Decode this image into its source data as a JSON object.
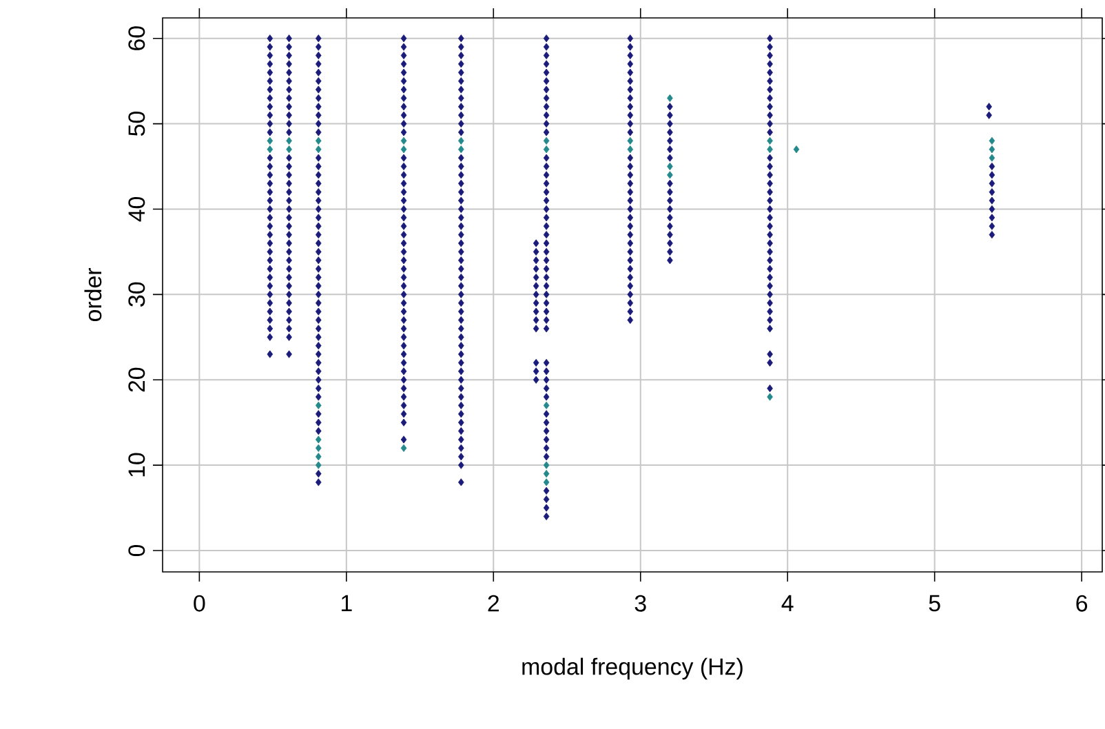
{
  "chart_data": {
    "type": "scatter",
    "xlabel": "modal frequency (Hz)",
    "ylabel": "order",
    "xlim": [
      -0.25,
      6.14
    ],
    "ylim": [
      -2.5,
      62.4
    ],
    "xticks": [
      0,
      1,
      2,
      3,
      4,
      5,
      6
    ],
    "yticks": [
      0,
      10,
      20,
      30,
      40,
      50,
      60
    ],
    "grid": true,
    "marker": "diamond",
    "series": [
      {
        "color": "#1b1b7a",
        "x": [
          0.48,
          0.48,
          0.48,
          0.48,
          0.48,
          0.48,
          0.48,
          0.48,
          0.48,
          0.48,
          0.48,
          0.48,
          0.48,
          0.48,
          0.48,
          0.48,
          0.48,
          0.48,
          0.48,
          0.48,
          0.48,
          0.48,
          0.48,
          0.48,
          0.48,
          0.48,
          0.48,
          0.48,
          0.48,
          0.48,
          0.48,
          0.48,
          0.48,
          0.48,
          0.48
        ],
        "values": [
          23,
          25,
          26,
          27,
          28,
          29,
          30,
          31,
          32,
          33,
          34,
          35,
          36,
          37,
          38,
          39,
          40,
          41,
          42,
          43,
          44,
          45,
          46,
          49,
          50,
          51,
          52,
          53,
          54,
          55,
          56,
          57,
          58,
          59,
          60
        ]
      },
      {
        "color": "#1b1b7a",
        "x": [
          0.61,
          0.61,
          0.61,
          0.61,
          0.61,
          0.61,
          0.61,
          0.61,
          0.61,
          0.61,
          0.61,
          0.61,
          0.61,
          0.61,
          0.61,
          0.61,
          0.61,
          0.61,
          0.61,
          0.61,
          0.61,
          0.61,
          0.61,
          0.61,
          0.61,
          0.61,
          0.61,
          0.61,
          0.61,
          0.61,
          0.61,
          0.61,
          0.61,
          0.61,
          0.61
        ],
        "values": [
          23,
          25,
          26,
          27,
          28,
          29,
          30,
          31,
          32,
          33,
          34,
          35,
          36,
          37,
          38,
          39,
          40,
          41,
          42,
          43,
          44,
          45,
          46,
          49,
          50,
          51,
          52,
          53,
          54,
          55,
          56,
          57,
          58,
          59,
          60
        ]
      },
      {
        "color": "#1b1b7a",
        "x": [
          0.81,
          0.81,
          0.81,
          0.81,
          0.81,
          0.81,
          0.81,
          0.81,
          0.81,
          0.81,
          0.81,
          0.81,
          0.81,
          0.81,
          0.81,
          0.81,
          0.81,
          0.81,
          0.81,
          0.81,
          0.81,
          0.81,
          0.81,
          0.81,
          0.81,
          0.81,
          0.81,
          0.81,
          0.81,
          0.81,
          0.81,
          0.81,
          0.81,
          0.81,
          0.81,
          0.81,
          0.81,
          0.81,
          0.81,
          0.81,
          0.81,
          0.81,
          0.81,
          0.81,
          0.81,
          0.81
        ],
        "values": [
          8,
          9,
          14,
          15,
          16,
          18,
          19,
          20,
          21,
          22,
          23,
          24,
          25,
          26,
          27,
          28,
          29,
          30,
          31,
          32,
          33,
          34,
          35,
          36,
          37,
          38,
          39,
          40,
          41,
          42,
          43,
          44,
          45,
          46,
          49,
          50,
          51,
          52,
          53,
          54,
          55,
          56,
          57,
          58,
          59,
          60
        ]
      },
      {
        "color": "#1b1b7a",
        "x": [
          1.39,
          1.39,
          1.39,
          1.39,
          1.39,
          1.39,
          1.39,
          1.39,
          1.39,
          1.39,
          1.39,
          1.39,
          1.39,
          1.39,
          1.39,
          1.39,
          1.39,
          1.39,
          1.39,
          1.39,
          1.39,
          1.39,
          1.39,
          1.39,
          1.39,
          1.39,
          1.39,
          1.39,
          1.39,
          1.39,
          1.39,
          1.39,
          1.39,
          1.39,
          1.39,
          1.39,
          1.39,
          1.39,
          1.39,
          1.39,
          1.39,
          1.39,
          1.39,
          1.39,
          1.39
        ],
        "values": [
          13,
          15,
          16,
          17,
          18,
          19,
          20,
          21,
          22,
          23,
          24,
          25,
          26,
          27,
          28,
          29,
          30,
          31,
          32,
          33,
          34,
          35,
          36,
          37,
          38,
          39,
          40,
          41,
          42,
          43,
          44,
          45,
          46,
          49,
          50,
          51,
          52,
          53,
          54,
          55,
          56,
          57,
          58,
          59,
          60
        ]
      },
      {
        "color": "#1b1b7a",
        "x": [
          1.78,
          1.78,
          1.78,
          1.78,
          1.78,
          1.78,
          1.78,
          1.78,
          1.78,
          1.78,
          1.78,
          1.78,
          1.78,
          1.78,
          1.78,
          1.78,
          1.78,
          1.78,
          1.78,
          1.78,
          1.78,
          1.78,
          1.78,
          1.78,
          1.78,
          1.78,
          1.78,
          1.78,
          1.78,
          1.78,
          1.78,
          1.78,
          1.78,
          1.78,
          1.78,
          1.78,
          1.78,
          1.78,
          1.78,
          1.78,
          1.78,
          1.78,
          1.78,
          1.78,
          1.78,
          1.78,
          1.78,
          1.78,
          1.78,
          1.78
        ],
        "values": [
          8,
          10,
          11,
          12,
          13,
          14,
          15,
          16,
          17,
          18,
          19,
          20,
          21,
          22,
          23,
          24,
          25,
          26,
          27,
          28,
          29,
          30,
          31,
          32,
          33,
          34,
          35,
          36,
          37,
          38,
          39,
          40,
          41,
          42,
          43,
          44,
          45,
          46,
          49,
          50,
          51,
          52,
          53,
          54,
          55,
          56,
          57,
          58,
          59,
          60
        ]
      },
      {
        "color": "#1b1b7a",
        "x": [
          2.29,
          2.29,
          2.29,
          2.29,
          2.29,
          2.29,
          2.29,
          2.29,
          2.29,
          2.29,
          2.29,
          2.29,
          2.29,
          2.29
        ],
        "values": [
          20,
          21,
          22,
          26,
          27,
          28,
          29,
          30,
          31,
          32,
          33,
          34,
          35,
          36
        ]
      },
      {
        "color": "#1b1b7a",
        "x": [
          2.36,
          2.36,
          2.36,
          2.36,
          2.36,
          2.36,
          2.36,
          2.36,
          2.36,
          2.36,
          2.36,
          2.36,
          2.36,
          2.36,
          2.36,
          2.36,
          2.36,
          2.36,
          2.36,
          2.36,
          2.36,
          2.36,
          2.36,
          2.36,
          2.36,
          2.36,
          2.36,
          2.36,
          2.36,
          2.36,
          2.36,
          2.36,
          2.36,
          2.36,
          2.36,
          2.36,
          2.36,
          2.36,
          2.36,
          2.36,
          2.36,
          2.36,
          2.36,
          2.36,
          2.36,
          2.36,
          2.36,
          2.36
        ],
        "values": [
          4,
          5,
          6,
          7,
          11,
          12,
          13,
          14,
          15,
          16,
          18,
          19,
          20,
          21,
          22,
          26,
          27,
          28,
          29,
          30,
          31,
          32,
          33,
          34,
          35,
          36,
          37,
          38,
          39,
          40,
          41,
          42,
          43,
          44,
          45,
          46,
          49,
          50,
          51,
          52,
          53,
          54,
          55,
          56,
          57,
          58,
          59,
          60
        ]
      },
      {
        "color": "#1b1b7a",
        "x": [
          2.93,
          2.93,
          2.93,
          2.93,
          2.93,
          2.93,
          2.93,
          2.93,
          2.93,
          2.93,
          2.93,
          2.93,
          2.93,
          2.93,
          2.93,
          2.93,
          2.93,
          2.93,
          2.93,
          2.93,
          2.93,
          2.93,
          2.93,
          2.93,
          2.93,
          2.93,
          2.93,
          2.93,
          2.93,
          2.93,
          2.93,
          2.93
        ],
        "values": [
          27,
          28,
          29,
          30,
          31,
          32,
          33,
          34,
          35,
          36,
          37,
          38,
          39,
          40,
          41,
          42,
          43,
          44,
          45,
          46,
          49,
          50,
          51,
          52,
          53,
          54,
          55,
          56,
          57,
          58,
          59,
          60
        ]
      },
      {
        "color": "#1b1b7a",
        "x": [
          3.2,
          3.2,
          3.2,
          3.2,
          3.2,
          3.2,
          3.2,
          3.2,
          3.2,
          3.2,
          3.2,
          3.2,
          3.2,
          3.2,
          3.2,
          3.2,
          3.2
        ],
        "values": [
          34,
          35,
          36,
          37,
          38,
          39,
          40,
          41,
          42,
          43,
          46,
          47,
          48,
          49,
          50,
          51,
          52
        ]
      },
      {
        "color": "#1b1b7a",
        "x": [
          3.88,
          3.88,
          3.88,
          3.88,
          3.88,
          3.88,
          3.88,
          3.88,
          3.88,
          3.88,
          3.88,
          3.88,
          3.88,
          3.88,
          3.88,
          3.88,
          3.88,
          3.88,
          3.88,
          3.88,
          3.88,
          3.88,
          3.88,
          3.88,
          3.88,
          3.88,
          3.88,
          3.88,
          3.88,
          3.88,
          3.88,
          3.88,
          3.88,
          3.88,
          3.88,
          3.88
        ],
        "values": [
          19,
          22,
          23,
          26,
          27,
          28,
          29,
          30,
          31,
          32,
          33,
          34,
          35,
          36,
          37,
          38,
          39,
          40,
          41,
          42,
          43,
          44,
          45,
          46,
          49,
          50,
          51,
          52,
          53,
          54,
          55,
          56,
          57,
          58,
          59,
          60
        ]
      },
      {
        "color": "#1b1b7a",
        "x": [
          5.37,
          5.37
        ],
        "values": [
          51,
          52
        ]
      },
      {
        "color": "#1b1b7a",
        "x": [
          5.39,
          5.39,
          5.39,
          5.39,
          5.39,
          5.39,
          5.39,
          5.39,
          5.39
        ],
        "values": [
          37,
          38,
          39,
          40,
          41,
          42,
          43,
          44,
          45
        ]
      },
      {
        "color": "#23898c",
        "x": [
          0.48,
          0.48,
          0.61,
          0.61,
          0.81,
          0.81,
          0.81,
          0.81,
          0.81,
          0.81,
          0.81,
          1.39,
          1.39,
          1.39,
          1.78,
          1.78,
          2.36,
          2.36,
          2.36,
          2.36,
          2.36,
          2.36,
          2.93,
          2.93,
          3.2,
          3.2,
          3.2,
          3.88,
          3.88,
          3.88,
          4.06,
          5.39,
          5.39,
          5.39
        ],
        "values": [
          47,
          48,
          47,
          48,
          10,
          11,
          12,
          13,
          17,
          47,
          48,
          12,
          47,
          48,
          47,
          48,
          8,
          9,
          10,
          17,
          47,
          48,
          47,
          48,
          44,
          45,
          53,
          18,
          47,
          48,
          47,
          46,
          47,
          48
        ]
      }
    ]
  }
}
